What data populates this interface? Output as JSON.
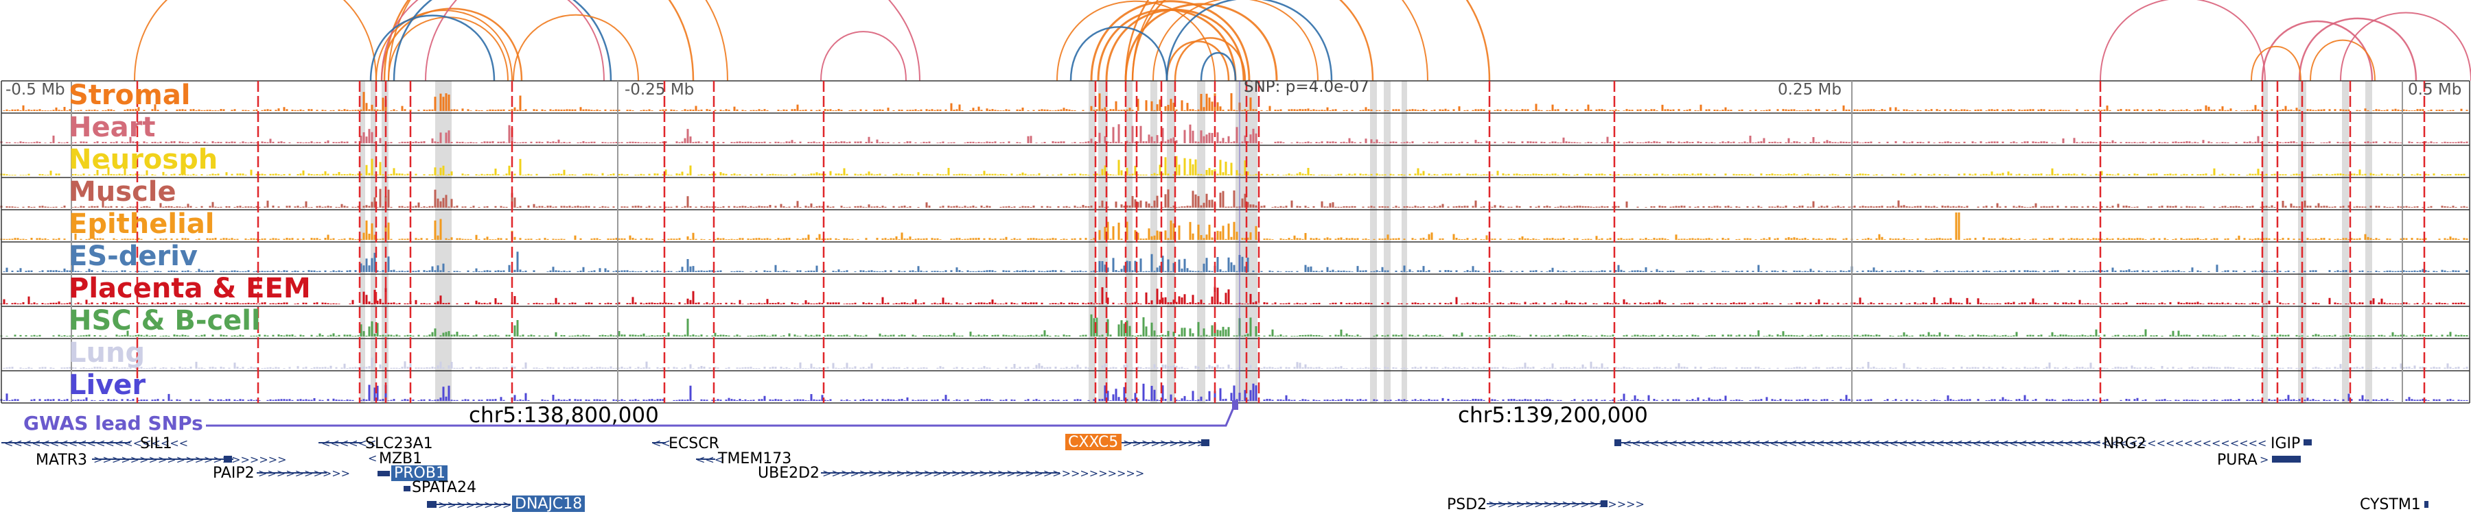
{
  "genome_browser": {
    "scale_labels": [
      "-0.5 Mb",
      "-0.25 Mb",
      "0.25 Mb",
      "0.5 Mb"
    ],
    "snp_label": "SNP: p=4.0e-07",
    "coordinate_labels": [
      "chr5:138,800,000",
      "chr5:139,200,000"
    ],
    "gwas_label": "GWAS lead SNPs"
  },
  "tracks": [
    {
      "label": "Stromal",
      "color": "#f07a1d"
    },
    {
      "label": "Heart",
      "color": "#d36c7a"
    },
    {
      "label": "Neurosph",
      "color": "#f1d21b"
    },
    {
      "label": "Muscle",
      "color": "#c06155"
    },
    {
      "label": "Epithelial",
      "color": "#f29a1e"
    },
    {
      "label": "ES-deriv",
      "color": "#4d7db3"
    },
    {
      "label": "Placenta & EEM",
      "color": "#d0141e"
    },
    {
      "label": "HSC & B-cell",
      "color": "#55a454"
    },
    {
      "label": "Lung",
      "color": "#cdcfe6"
    },
    {
      "label": "Liver",
      "color": "#4f48d6"
    }
  ],
  "genes": [
    {
      "name": "SIL1"
    },
    {
      "name": "MATR3"
    },
    {
      "name": "PAIP2"
    },
    {
      "name": "SLC23A1"
    },
    {
      "name": "MZB1"
    },
    {
      "name": "PROB1",
      "highlight": "#3466a8"
    },
    {
      "name": "SPATA24"
    },
    {
      "name": "DNAJC18",
      "highlight": "#3466a8"
    },
    {
      "name": "ECSCR"
    },
    {
      "name": "TMEM173"
    },
    {
      "name": "UBE2D2"
    },
    {
      "name": "CXXC5",
      "highlight": "#f07a1d"
    },
    {
      "name": "PSD2"
    },
    {
      "name": "NRG2"
    },
    {
      "name": "IGIP"
    },
    {
      "name": "PURA"
    },
    {
      "name": "CYSTM1"
    }
  ],
  "colors": {
    "interaction_orange": "#f07a1d",
    "interaction_pink": "#d9607a",
    "interaction_blue": "#2f6ea8",
    "eqtl_line": "#e0262a",
    "highlight_band": "#dcdcdc",
    "gwas": "#6a5acd"
  }
}
